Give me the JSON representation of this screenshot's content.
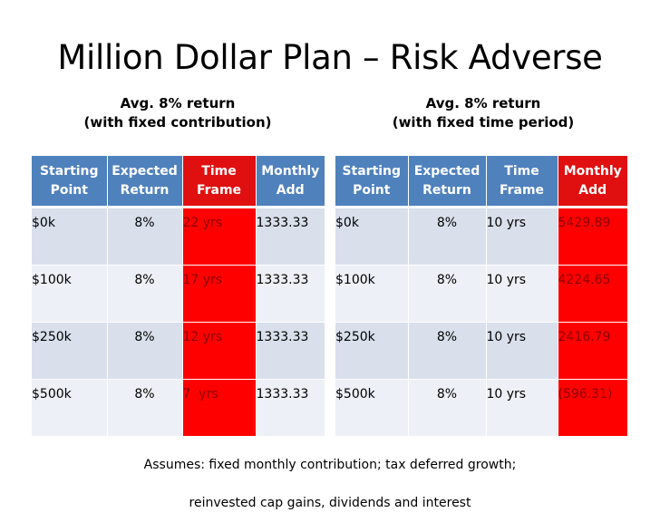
{
  "title": "Million Dollar Plan – Risk Adverse",
  "left": {
    "subtitle_line1": "Avg. 8% return",
    "subtitle_line2": "(with fixed contribution)",
    "headers": [
      "Starting\nPoint",
      "Expected\nReturn",
      "Time\nFrame",
      "Monthly\nAdd"
    ],
    "rows": [
      [
        "$0k",
        "8%",
        "22 yrs",
        "1333.33"
      ],
      [
        "$100k",
        "8%",
        "17 yrs",
        "1333.33"
      ],
      [
        "$250k",
        "8%",
        "12 yrs",
        "1333.33"
      ],
      [
        "$500k",
        "8%",
        "7  yrs",
        "1333.33"
      ]
    ]
  },
  "right": {
    "subtitle_line1": "Avg. 8% return",
    "subtitle_line2": "(with fixed time period)",
    "headers": [
      "Starting\nPoint",
      "Expected\nReturn",
      "Time\nFrame",
      "Monthly\nAdd"
    ],
    "rows": [
      [
        "$0k",
        "8%",
        "10 yrs",
        "5429.89"
      ],
      [
        "$100k",
        "8%",
        "10 yrs",
        "4224.65"
      ],
      [
        "$250k",
        "8%",
        "10 yrs",
        "2416.79"
      ],
      [
        "$500k",
        "8%",
        "10 yrs",
        "(596.31)"
      ]
    ]
  },
  "footnote_line1": "Assumes: fixed monthly contribution; tax deferred growth;",
  "footnote_line2": "reinvested cap gains, dividends and interest",
  "colors": {
    "header_blue": "#4f81bd",
    "highlight_red": "#ff0000",
    "row_band_dark": "#d9e0ec",
    "row_band_light": "#edf0f6"
  }
}
